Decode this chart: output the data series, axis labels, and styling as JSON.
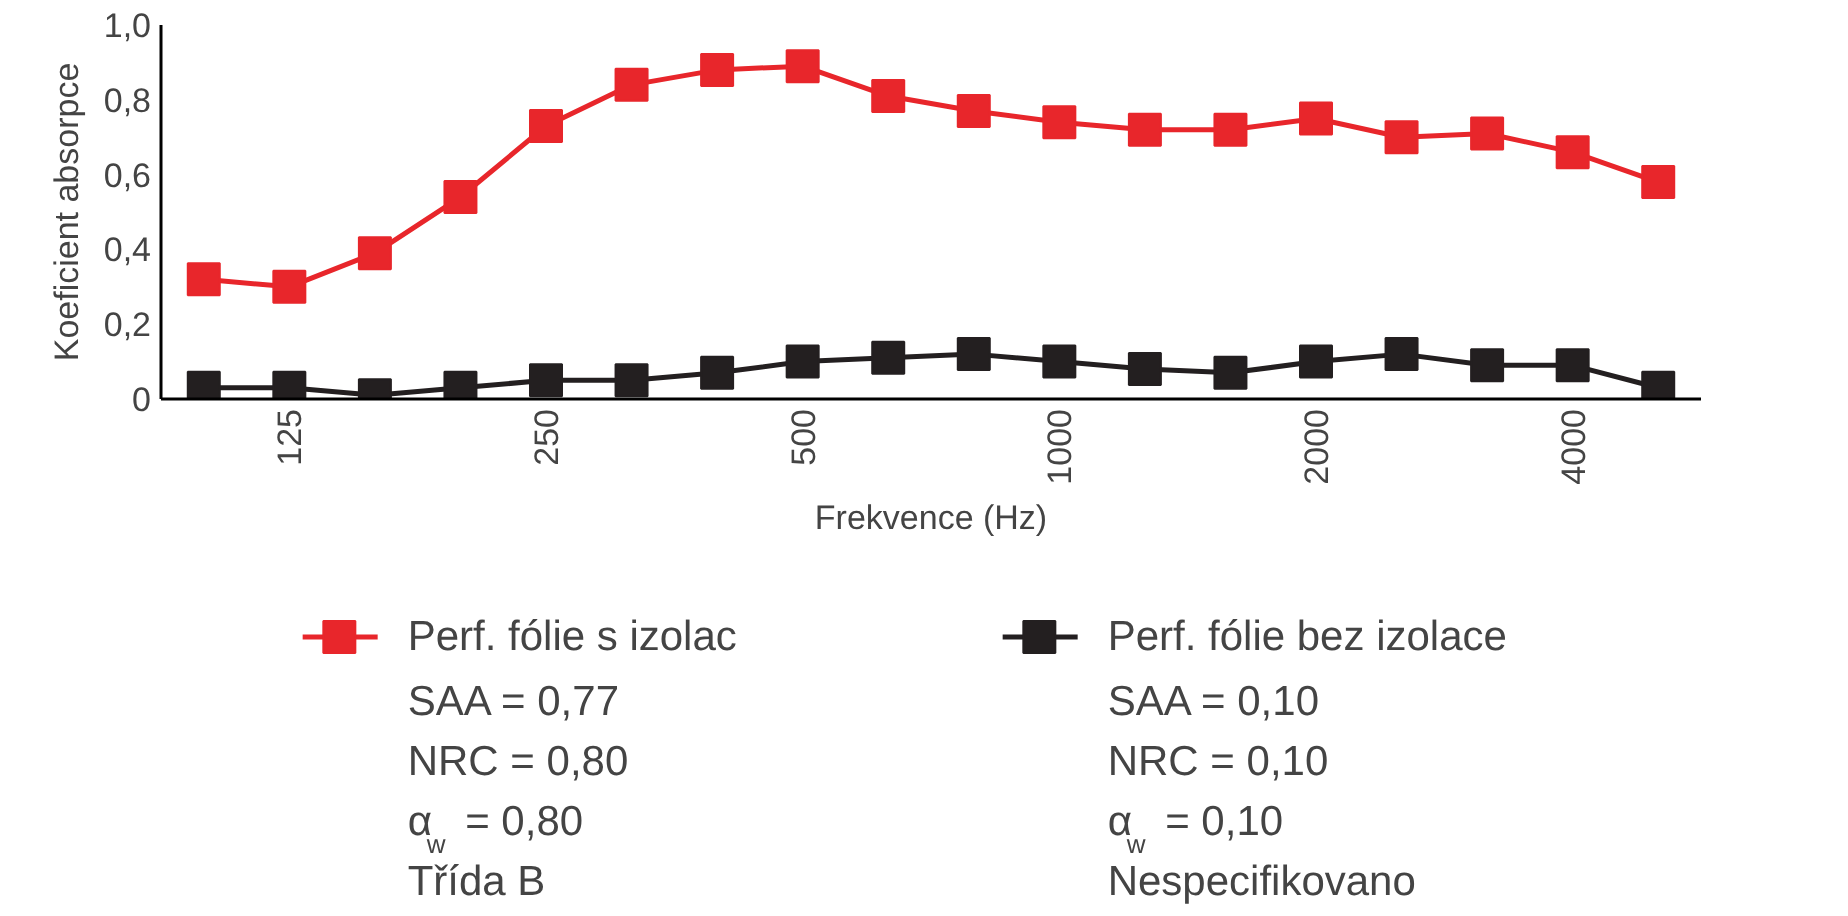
{
  "chart_data": {
    "type": "line",
    "xlabel": "Frekvence (Hz)",
    "ylabel": "Koeficient absorpce",
    "categories": [
      null,
      "125",
      null,
      null,
      "250",
      null,
      null,
      "500",
      null,
      null,
      "1000",
      null,
      null,
      "2000",
      null,
      null,
      "4000",
      null
    ],
    "series": [
      {
        "name": "Perf. fólie s izolac",
        "color": "#e8262b",
        "values": [
          0.32,
          0.3,
          0.39,
          0.54,
          0.73,
          0.84,
          0.88,
          0.89,
          0.81,
          0.77,
          0.74,
          0.72,
          0.72,
          0.75,
          0.7,
          0.71,
          0.66,
          0.58
        ]
      },
      {
        "name": "Perf. fólie bez izolace",
        "color": "#231f20",
        "values": [
          0.03,
          0.03,
          0.01,
          0.03,
          0.05,
          0.05,
          0.07,
          0.1,
          0.11,
          0.12,
          0.1,
          0.08,
          0.07,
          0.1,
          0.12,
          0.09,
          0.09,
          0.03
        ]
      }
    ],
    "ylim": [
      0,
      1.0
    ],
    "yticks": [
      {
        "value": 0,
        "label": "0"
      },
      {
        "value": 0.2,
        "label": "0,2"
      },
      {
        "value": 0.4,
        "label": "0,4"
      },
      {
        "value": 0.6,
        "label": "0,6"
      },
      {
        "value": 0.8,
        "label": "0,8"
      },
      {
        "value": 1.0,
        "label": "1,0"
      }
    ],
    "marker": "square",
    "grid": false,
    "legend": "bottom",
    "annotations": [
      "SAA = 0,77",
      "NRC = 0,80",
      "α$_{w}$ = 0,80",
      "Třída B",
      "SAA = 0,10",
      "NRC = 0,10",
      "α$_{w}$ = 0,10",
      "Nespecifikovano"
    ]
  }
}
